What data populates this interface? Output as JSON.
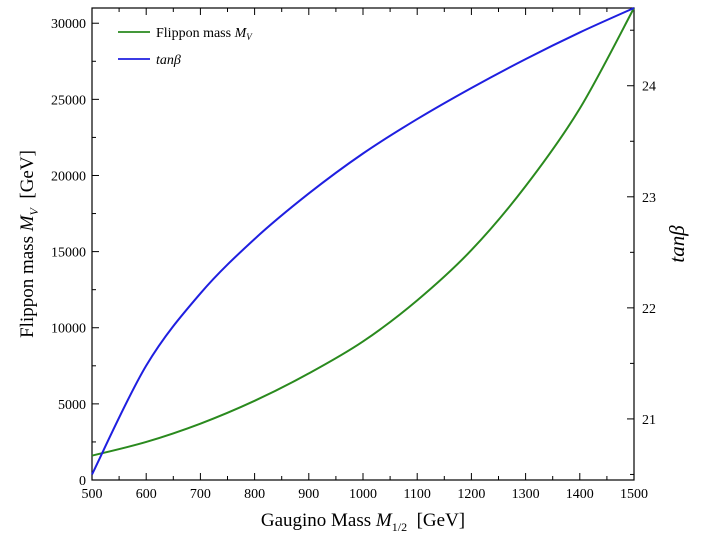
{
  "chart_data": {
    "type": "line",
    "xlabel": {
      "main": "Gaugino Mass ",
      "var": "M",
      "sub": "1/2",
      "unit": "  [GeV]"
    },
    "ylabel_left": {
      "main": "Flippon mass ",
      "var": "M",
      "sub": "V",
      "unit": "  [GeV]"
    },
    "ylabel_right": "tanβ",
    "xlim": [
      500,
      1500
    ],
    "ylim_left": [
      0,
      31000
    ],
    "ylim_right": [
      20.45,
      24.7
    ],
    "x_ticks": [
      "500",
      "600",
      "700",
      "800",
      "900",
      "1000",
      "1100",
      "1200",
      "1300",
      "1400",
      "1500"
    ],
    "y_left_ticks": [
      "0",
      "5000",
      "10000",
      "15000",
      "20000",
      "25000",
      "30000"
    ],
    "y_right_ticks": [
      "21",
      "22",
      "23",
      "24"
    ],
    "legend_position": "top-left",
    "series": [
      {
        "name": "Flippon mass M_V",
        "legend_main": "Flippon mass ",
        "legend_var": "M",
        "legend_sub": "V",
        "axis": "left",
        "color": "#2a8a1e",
        "x": [
          500,
          600,
          700,
          800,
          900,
          1000,
          1100,
          1200,
          1300,
          1400,
          1500
        ],
        "y": [
          1600,
          2500,
          3700,
          5200,
          7000,
          9100,
          11800,
          15100,
          19300,
          24400,
          31000
        ]
      },
      {
        "name": "tanβ",
        "legend_main": "tanβ",
        "axis": "right",
        "color": "#1f1fe0",
        "x": [
          500,
          600,
          700,
          800,
          900,
          1000,
          1100,
          1200,
          1300,
          1400,
          1500
        ],
        "y": [
          20.5,
          21.48,
          22.13,
          22.62,
          23.03,
          23.39,
          23.7,
          23.98,
          24.24,
          24.48,
          24.7
        ]
      }
    ]
  }
}
